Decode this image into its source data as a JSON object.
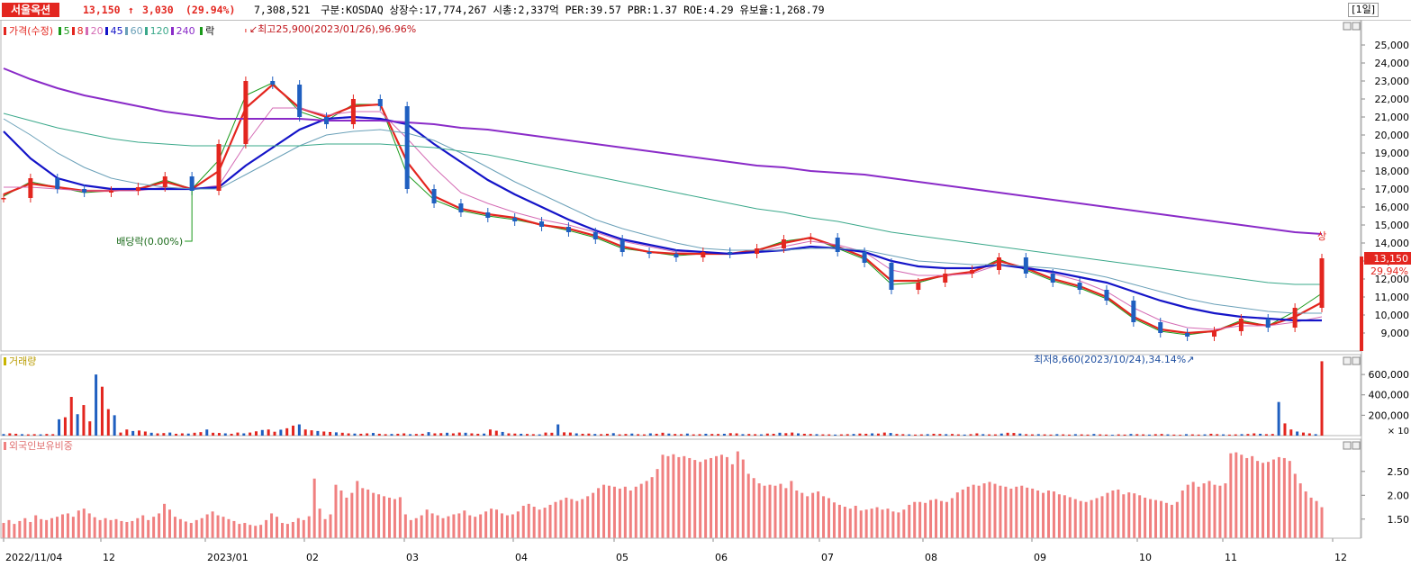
{
  "header": {
    "name": "서울옥션",
    "price": "13,150",
    "change_arrow": "↑",
    "change": "3,030",
    "change_pct": "(29.94%)",
    "volume": "7,308,521",
    "info": "구분:KOSDAQ 상장수:17,774,267 시총:2,337억 PER:39.57 PBR:1.37 ROE:4.29 유보율:1,268.79",
    "period": "[1일]"
  },
  "legend": {
    "price": "가격(수정)",
    "ma": [
      {
        "label": "5",
        "color": "#1a9a1a"
      },
      {
        "label": "8",
        "color": "#e3261f"
      },
      {
        "label": "20",
        "color": "#d46bb4"
      },
      {
        "label": "45",
        "color": "#1414c8"
      },
      {
        "label": "60",
        "color": "#6aa0b8"
      },
      {
        "label": "120",
        "color": "#3aa88a"
      },
      {
        "label": "240",
        "color": "#8a2bc8"
      }
    ],
    "drop": "락"
  },
  "volume_title": "거래량",
  "foreign_title": "외국인보유비중",
  "colors": {
    "up": "#e3261f",
    "down": "#1f5fc0",
    "bg": "#ffffff",
    "grid": "#e6e6e6"
  },
  "chart_data": [
    {
      "type": "line",
      "title": "가격(수정)",
      "y_axis_labels": [
        "25,000",
        "24,000",
        "23,000",
        "22,000",
        "21,000",
        "20,000",
        "19,000",
        "18,000",
        "17,000",
        "16,000",
        "15,000",
        "14,000",
        "13,000",
        "12,000",
        "11,000",
        "10,000",
        "9,000"
      ],
      "ylim": [
        8000,
        26200
      ],
      "x_labels": [
        "2022/11/04",
        "12",
        "2023/01",
        "02",
        "03",
        "04",
        "05",
        "06",
        "07",
        "08",
        "09",
        "10",
        "11",
        "12"
      ],
      "series": [
        {
          "name": "가격(수정)",
          "color": "#1a1a1a",
          "values": [
            16500,
            17600,
            17000,
            16800,
            16900,
            17100,
            17700,
            16900,
            19500,
            23000,
            22800,
            21000,
            20600,
            22000,
            21600,
            17000,
            16200,
            15700,
            15400,
            15200,
            14900,
            14600,
            14200,
            13500,
            13400,
            13200,
            13500,
            13400,
            13700,
            14200,
            14300,
            13500,
            12900,
            11400,
            11800,
            12300,
            12500,
            13200,
            12300,
            11800,
            11400,
            10800,
            9600,
            9000,
            8800,
            9100,
            9800,
            9300,
            10400,
            13150
          ]
        },
        {
          "name": "5",
          "color": "#1a9a1a",
          "values": [
            16600,
            17400,
            17100,
            16800,
            16900,
            17000,
            17500,
            17000,
            18600,
            22200,
            22900,
            21300,
            20800,
            21700,
            21700,
            17800,
            16400,
            15800,
            15500,
            15300,
            15000,
            14700,
            14300,
            13700,
            13500,
            13300,
            13400,
            13400,
            13600,
            14100,
            14300,
            13700,
            13100,
            11700,
            11800,
            12200,
            12400,
            13100,
            12500,
            11900,
            11500,
            10900,
            9800,
            9100,
            8900,
            9100,
            9700,
            9400,
            10200,
            11200
          ]
        },
        {
          "name": "8",
          "color": "#e3261f",
          "values": [
            16700,
            17300,
            17100,
            16900,
            16900,
            17000,
            17400,
            17000,
            18000,
            21500,
            22800,
            21500,
            21000,
            21600,
            21700,
            18500,
            16600,
            15900,
            15600,
            15400,
            15000,
            14800,
            14400,
            13800,
            13500,
            13400,
            13400,
            13400,
            13600,
            14000,
            14300,
            13800,
            13200,
            11900,
            11900,
            12200,
            12400,
            13000,
            12600,
            12000,
            11600,
            11000,
            9900,
            9200,
            9000,
            9100,
            9600,
            9400,
            9900,
            10700
          ]
        },
        {
          "name": "20",
          "color": "#d46bb4",
          "values": [
            17100,
            17100,
            17000,
            16900,
            16900,
            16900,
            17100,
            17000,
            17200,
            19500,
            21500,
            21500,
            21100,
            21300,
            21300,
            19800,
            18200,
            16800,
            16200,
            15700,
            15300,
            15000,
            14600,
            14100,
            13800,
            13500,
            13500,
            13400,
            13500,
            13800,
            14100,
            13900,
            13500,
            12500,
            12200,
            12200,
            12300,
            12800,
            12700,
            12300,
            11900,
            11300,
            10400,
            9700,
            9300,
            9200,
            9400,
            9400,
            9600,
            9900
          ]
        },
        {
          "name": "45",
          "color": "#1414c8",
          "values": [
            20200,
            18700,
            17600,
            17200,
            17000,
            17000,
            17000,
            17000,
            17100,
            18300,
            19300,
            20300,
            20900,
            21000,
            20900,
            20600,
            19500,
            18500,
            17500,
            16700,
            16000,
            15300,
            14700,
            14200,
            13900,
            13600,
            13500,
            13400,
            13500,
            13600,
            13800,
            13700,
            13500,
            13000,
            12700,
            12600,
            12600,
            12800,
            12600,
            12400,
            12100,
            11800,
            11300,
            10800,
            10400,
            10100,
            9900,
            9800,
            9700,
            9700
          ]
        },
        {
          "name": "60",
          "color": "#6aa0b8",
          "values": [
            20900,
            20000,
            19000,
            18200,
            17600,
            17300,
            17100,
            17000,
            17000,
            17800,
            18600,
            19400,
            20000,
            20200,
            20300,
            20100,
            19700,
            19000,
            18200,
            17400,
            16700,
            16000,
            15300,
            14800,
            14400,
            14000,
            13700,
            13600,
            13600,
            13600,
            13700,
            13700,
            13600,
            13300,
            13000,
            12900,
            12800,
            12800,
            12700,
            12600,
            12400,
            12100,
            11700,
            11300,
            10900,
            10600,
            10400,
            10200,
            10100,
            10100
          ]
        },
        {
          "name": "120",
          "color": "#3aa88a",
          "values": [
            21200,
            20800,
            20400,
            20100,
            19800,
            19600,
            19500,
            19400,
            19400,
            19400,
            19400,
            19400,
            19500,
            19500,
            19500,
            19400,
            19300,
            19100,
            18900,
            18600,
            18300,
            18000,
            17700,
            17400,
            17100,
            16800,
            16500,
            16200,
            15900,
            15700,
            15400,
            15200,
            14900,
            14600,
            14400,
            14200,
            14000,
            13800,
            13600,
            13400,
            13200,
            13000,
            12800,
            12600,
            12400,
            12200,
            12000,
            11800,
            11700,
            11700
          ]
        },
        {
          "name": "240",
          "color": "#8a2bc8",
          "values": [
            23700,
            23100,
            22600,
            22200,
            21900,
            21600,
            21300,
            21100,
            20900,
            20900,
            20900,
            20900,
            20800,
            20800,
            20800,
            20700,
            20600,
            20400,
            20300,
            20100,
            19900,
            19700,
            19500,
            19300,
            19100,
            18900,
            18700,
            18500,
            18300,
            18200,
            18000,
            17900,
            17800,
            17600,
            17400,
            17200,
            17000,
            16800,
            16600,
            16400,
            16200,
            16000,
            15800,
            15600,
            15400,
            15200,
            15000,
            14800,
            14600,
            14500
          ]
        }
      ],
      "annotations": [
        {
          "text": "최고25,900(2023/01/26),96.96%",
          "x_index": 9,
          "y": 25900
        },
        {
          "text": "배당락(0.00%)",
          "x_index": 7,
          "y": 14100
        },
        {
          "text": "최저8,660(2023/10/24),34.14%",
          "x_index": 45,
          "y": 8660
        },
        {
          "text": "상",
          "x_index": 49,
          "y": 13900
        },
        {
          "text": "13,150",
          "axis": true
        },
        {
          "text": "29.94%",
          "axis": true
        }
      ]
    },
    {
      "type": "bar",
      "title": "거래량",
      "y_axis_labels": [
        "600,000",
        "400,000",
        "200,000"
      ],
      "unit_note": "× 10",
      "ylim": [
        0,
        760000
      ],
      "values": [
        15000,
        22000,
        18000,
        14000,
        12000,
        14000,
        12000,
        16000,
        14000,
        160000,
        180000,
        380000,
        210000,
        300000,
        140000,
        600000,
        480000,
        260000,
        200000,
        30000,
        60000,
        45000,
        50000,
        40000,
        28000,
        22000,
        25000,
        30000,
        18000,
        22000,
        20000,
        28000,
        34000,
        60000,
        28000,
        26000,
        22000,
        18000,
        30000,
        22000,
        30000,
        42000,
        55000,
        60000,
        38000,
        58000,
        72000,
        98000,
        110000,
        60000,
        52000,
        45000,
        40000,
        36000,
        32000,
        28000,
        22000,
        20000,
        18000,
        22000,
        26000,
        18000,
        14000,
        16000,
        18000,
        22000,
        14000,
        16000,
        18000,
        34000,
        22000,
        24000,
        28000,
        22000,
        30000,
        28000,
        22000,
        18000,
        20000,
        60000,
        48000,
        36000,
        22000,
        20000,
        18000,
        16000,
        14000,
        12000,
        30000,
        28000,
        110000,
        32000,
        30000,
        22000,
        18000,
        20000,
        16000,
        14000,
        18000,
        24000,
        12000,
        16000,
        20000,
        14000,
        12000,
        22000,
        18000,
        28000,
        20000,
        16000,
        14000,
        20000,
        12000,
        14000,
        18000,
        16000,
        16000,
        18000,
        24000,
        22000,
        14000,
        16000,
        14000,
        12000,
        20000,
        18000,
        28000,
        24000,
        30000,
        22000,
        18000,
        16000,
        14000,
        12000,
        12000,
        10000,
        12000,
        14000,
        16000,
        20000,
        18000,
        22000,
        20000,
        30000,
        26000,
        16000,
        14000,
        12000,
        10000,
        12000,
        14000,
        18000,
        16000,
        14000,
        16000,
        12000,
        10000,
        14000,
        22000,
        14000,
        12000,
        12000,
        20000,
        28000,
        26000,
        20000,
        14000,
        12000,
        14000,
        12000,
        10000,
        14000,
        12000,
        10000,
        14000,
        12000,
        10000,
        16000,
        12000,
        10000,
        8000,
        12000,
        10000,
        16000,
        14000,
        12000,
        10000,
        14000,
        16000,
        12000,
        10000,
        8000,
        14000,
        12000,
        10000,
        12000,
        18000,
        14000,
        12000,
        10000,
        12000,
        14000,
        16000,
        22000,
        18000,
        14000,
        16000,
        330000,
        120000,
        60000,
        40000,
        30000,
        22000,
        14000,
        730000
      ]
    },
    {
      "type": "bar",
      "title": "외국인보유비중",
      "y_axis_labels": [
        "2.50",
        "2.00",
        "1.50"
      ],
      "ylim": [
        1.1,
        3.1
      ],
      "values": [
        1.42,
        1.48,
        1.4,
        1.46,
        1.52,
        1.44,
        1.58,
        1.5,
        1.48,
        1.52,
        1.55,
        1.6,
        1.62,
        1.55,
        1.68,
        1.72,
        1.62,
        1.54,
        1.48,
        1.52,
        1.48,
        1.5,
        1.46,
        1.44,
        1.46,
        1.52,
        1.58,
        1.48,
        1.55,
        1.62,
        1.82,
        1.7,
        1.55,
        1.5,
        1.45,
        1.42,
        1.48,
        1.52,
        1.6,
        1.66,
        1.58,
        1.55,
        1.5,
        1.46,
        1.4,
        1.42,
        1.38,
        1.36,
        1.38,
        1.48,
        1.62,
        1.55,
        1.42,
        1.4,
        1.44,
        1.52,
        1.48,
        1.56,
        2.35,
        1.72,
        1.5,
        1.6,
        2.22,
        2.1,
        1.95,
        2.05,
        2.3,
        2.15,
        2.12,
        2.05,
        2.02,
        1.98,
        1.95,
        1.92,
        1.96,
        1.6,
        1.48,
        1.52,
        1.58,
        1.7,
        1.62,
        1.58,
        1.52,
        1.56,
        1.6,
        1.62,
        1.68,
        1.58,
        1.55,
        1.6,
        1.66,
        1.72,
        1.7,
        1.62,
        1.58,
        1.6,
        1.66,
        1.78,
        1.82,
        1.76,
        1.7,
        1.74,
        1.8,
        1.86,
        1.9,
        1.95,
        1.92,
        1.88,
        1.92,
        1.98,
        2.05,
        2.15,
        2.22,
        2.2,
        2.18,
        2.14,
        2.18,
        2.1,
        2.18,
        2.24,
        2.3,
        2.38,
        2.55,
        2.85,
        2.82,
        2.86,
        2.8,
        2.82,
        2.78,
        2.74,
        2.7,
        2.75,
        2.78,
        2.82,
        2.85,
        2.8,
        2.65,
        2.92,
        2.75,
        2.45,
        2.36,
        2.25,
        2.2,
        2.22,
        2.2,
        2.24,
        2.15,
        2.3,
        2.1,
        2.05,
        1.98,
        2.05,
        2.08,
        1.98,
        1.94,
        1.85,
        1.8,
        1.76,
        1.72,
        1.78,
        1.68,
        1.7,
        1.72,
        1.75,
        1.7,
        1.72,
        1.66,
        1.64,
        1.7,
        1.8,
        1.86,
        1.86,
        1.84,
        1.9,
        1.92,
        1.88,
        1.86,
        1.94,
        2.06,
        2.12,
        2.18,
        2.22,
        2.2,
        2.25,
        2.28,
        2.24,
        2.2,
        2.18,
        2.14,
        2.18,
        2.2,
        2.16,
        2.14,
        2.1,
        2.05,
        2.1,
        2.08,
        2.02,
        2.0,
        1.96,
        1.92,
        1.88,
        1.86,
        1.9,
        1.94,
        1.98,
        2.05,
        2.1,
        2.12,
        2.02,
        2.06,
        2.04,
        2.0,
        1.95,
        1.92,
        1.9,
        1.88,
        1.84,
        1.8,
        1.86,
        2.1,
        2.22,
        2.28,
        2.18,
        2.25,
        2.3,
        2.22,
        2.2,
        2.25,
        2.88,
        2.9,
        2.85,
        2.78,
        2.82,
        2.72,
        2.68,
        2.7,
        2.75,
        2.8,
        2.78,
        2.72,
        2.45,
        2.25,
        2.08,
        1.95,
        1.88,
        1.75
      ]
    }
  ]
}
